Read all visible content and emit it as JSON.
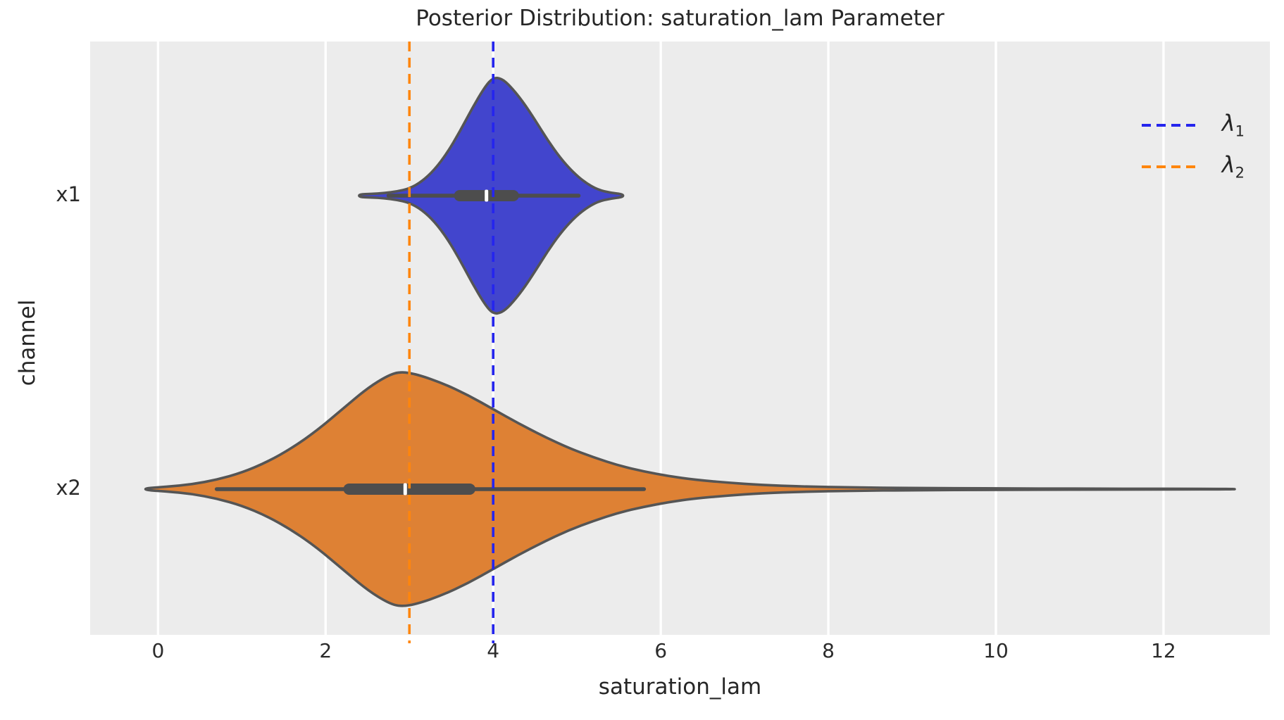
{
  "chart_data": {
    "type": "violin",
    "title": "Posterior Distribution: saturation_lam Parameter",
    "xlabel": "saturation_lam",
    "ylabel": "channel",
    "categories": [
      "x1",
      "x2"
    ],
    "xlim": [
      -0.81,
      13.27
    ],
    "x_ticks": [
      0,
      2,
      4,
      6,
      8,
      10,
      12
    ],
    "grid": "vertical white gridlines on light-gray background",
    "background_color": "#ececec",
    "gridline_color": "#ffffff",
    "outline_color": "#555555",
    "inner_box_color": "#4d4d4d",
    "median_tick_color": "#ffffff",
    "violins": [
      {
        "category": "x1",
        "fill": "#4245cd",
        "center_frac": 0.2598,
        "half_height_frac": 0.1993,
        "summary": {
          "median": 3.92,
          "q1": 3.6,
          "q3": 4.24,
          "whisker_low": 2.75,
          "whisker_high": 5.02,
          "range_low": 2.4,
          "range_high": 5.55
        },
        "profile": [
          [
            2.4,
            0.012
          ],
          [
            2.55,
            0.015
          ],
          [
            2.7,
            0.022
          ],
          [
            2.85,
            0.035
          ],
          [
            3.0,
            0.06
          ],
          [
            3.15,
            0.12
          ],
          [
            3.3,
            0.22
          ],
          [
            3.45,
            0.36
          ],
          [
            3.6,
            0.54
          ],
          [
            3.75,
            0.74
          ],
          [
            3.9,
            0.92
          ],
          [
            4.0,
            1.0
          ],
          [
            4.1,
            0.99
          ],
          [
            4.2,
            0.93
          ],
          [
            4.35,
            0.8
          ],
          [
            4.5,
            0.64
          ],
          [
            4.65,
            0.47
          ],
          [
            4.8,
            0.32
          ],
          [
            4.95,
            0.2
          ],
          [
            5.1,
            0.11
          ],
          [
            5.25,
            0.05
          ],
          [
            5.4,
            0.025
          ],
          [
            5.55,
            0.012
          ]
        ]
      },
      {
        "category": "x2",
        "fill": "#de8134",
        "center_frac": 0.7544,
        "half_height_frac": 0.1981,
        "summary": {
          "median": 2.95,
          "q1": 2.28,
          "q3": 3.72,
          "whisker_low": 0.7,
          "whisker_high": 5.8,
          "range_low": -0.15,
          "range_high": 12.85
        },
        "profile": [
          [
            -0.15,
            0.008
          ],
          [
            0.1,
            0.02
          ],
          [
            0.4,
            0.04
          ],
          [
            0.7,
            0.08
          ],
          [
            1.0,
            0.14
          ],
          [
            1.3,
            0.23
          ],
          [
            1.6,
            0.35
          ],
          [
            1.9,
            0.5
          ],
          [
            2.2,
            0.68
          ],
          [
            2.5,
            0.86
          ],
          [
            2.75,
            0.97
          ],
          [
            2.9,
            1.0
          ],
          [
            3.1,
            0.975
          ],
          [
            3.4,
            0.9
          ],
          [
            3.7,
            0.8
          ],
          [
            4.0,
            0.68
          ],
          [
            4.3,
            0.56
          ],
          [
            4.6,
            0.45
          ],
          [
            4.9,
            0.35
          ],
          [
            5.2,
            0.27
          ],
          [
            5.5,
            0.2
          ],
          [
            5.8,
            0.15
          ],
          [
            6.1,
            0.11
          ],
          [
            6.4,
            0.08
          ],
          [
            6.8,
            0.055
          ],
          [
            7.2,
            0.035
          ],
          [
            7.7,
            0.022
          ],
          [
            8.3,
            0.014
          ],
          [
            9.0,
            0.009
          ],
          [
            10.0,
            0.006
          ],
          [
            11.0,
            0.004
          ],
          [
            12.0,
            0.003
          ],
          [
            12.85,
            0.002
          ]
        ]
      }
    ],
    "ref_lines": [
      {
        "name": "lambda_1",
        "symbol": "λ",
        "sub": "1",
        "value": 4.0,
        "color": "#2525ee"
      },
      {
        "name": "lambda_2",
        "symbol": "λ",
        "sub": "2",
        "value": 3.0,
        "color": "#ff860d"
      }
    ],
    "legend": {
      "position": "upper right",
      "frame": false
    }
  }
}
